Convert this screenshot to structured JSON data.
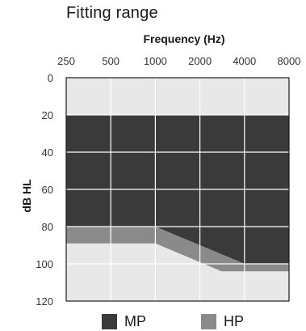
{
  "chart_data": {
    "type": "area",
    "title": "Fitting range",
    "xlabel": "Frequency (Hz)",
    "ylabel": "dB HL",
    "x_scale": "log",
    "x_ticks": [
      250,
      500,
      1000,
      2000,
      4000,
      8000
    ],
    "x_tick_labels": [
      "250",
      "500",
      "1000",
      "2000",
      "4000",
      "8000"
    ],
    "y_ticks": [
      0,
      20,
      40,
      60,
      80,
      100,
      120
    ],
    "y_tick_labels": [
      "0",
      "20",
      "40",
      "60",
      "80",
      "100",
      "120"
    ],
    "xlim": [
      250,
      8000
    ],
    "ylim": [
      0,
      120
    ],
    "y_inverted": true,
    "grid": true,
    "legend_position": "bottom",
    "plot_background": "#e8e8e8",
    "series": [
      {
        "name": "MP",
        "color": "#3a3a3a",
        "upper": [
          [
            250,
            20
          ],
          [
            8000,
            20
          ]
        ],
        "lower": [
          [
            250,
            80
          ],
          [
            1000,
            80
          ],
          [
            4000,
            100
          ],
          [
            8000,
            100
          ]
        ]
      },
      {
        "name": "HP",
        "color": "#8a8a8a",
        "upper": [
          [
            250,
            80
          ],
          [
            1000,
            80
          ],
          [
            4000,
            100
          ],
          [
            8000,
            100
          ]
        ],
        "lower": [
          [
            250,
            89
          ],
          [
            1000,
            89
          ],
          [
            2800,
            104
          ],
          [
            8000,
            104
          ]
        ]
      }
    ]
  }
}
